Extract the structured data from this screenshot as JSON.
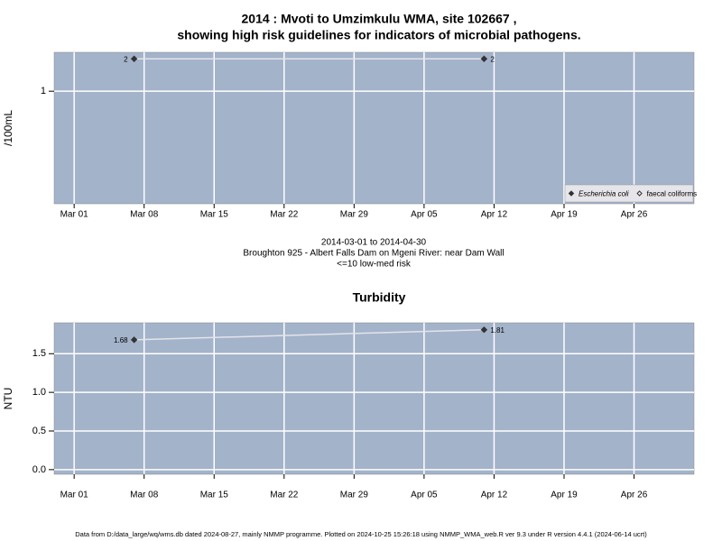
{
  "chart_data": [
    {
      "type": "line",
      "title": [
        "2014 : Mvoti to Umzimkulu WMA, site 102667 ,",
        "showing high risk guidelines for indicators of microbial pathogens."
      ],
      "subtitle": [
        "2014-03-01 to 2014-04-30",
        "Broughton 925 - Albert Falls Dam on Mgeni River: near Dam Wall",
        "<=10 low-med risk"
      ],
      "ylabel": "/100mL",
      "log_scale": true,
      "grid": true,
      "legend": "bottom-right",
      "xlim": [
        "2014-02-27",
        "2014-05-02"
      ],
      "xticks": [
        {
          "value": "2014-03-01",
          "label": "Mar 01"
        },
        {
          "value": "2014-03-08",
          "label": "Mar 08"
        },
        {
          "value": "2014-03-15",
          "label": "Mar 15"
        },
        {
          "value": "2014-03-22",
          "label": "Mar 22"
        },
        {
          "value": "2014-03-29",
          "label": "Mar 29"
        },
        {
          "value": "2014-04-05",
          "label": "Apr 05"
        },
        {
          "value": "2014-04-12",
          "label": "Apr 12"
        },
        {
          "value": "2014-04-19",
          "label": "Apr 19"
        },
        {
          "value": "2014-04-26",
          "label": "Apr 26"
        }
      ],
      "ylim": [
        0.09,
        2.3
      ],
      "yticks": [
        1
      ],
      "x": [
        "2014-03-07",
        "2014-04-11"
      ],
      "series": [
        {
          "name": "Escherichia coli",
          "color": "#333333",
          "marker": "filled",
          "values": [
            2,
            2
          ]
        },
        {
          "name": "faecal coliforms",
          "color": "#333333",
          "marker": "open",
          "values": [
            null,
            null
          ]
        }
      ]
    },
    {
      "type": "line",
      "title": [
        "Turbidity"
      ],
      "ylabel": "NTU",
      "log_scale": false,
      "grid": true,
      "xlim": [
        "2014-02-27",
        "2014-05-02"
      ],
      "xticks": [
        {
          "value": "2014-03-01",
          "label": "Mar 01"
        },
        {
          "value": "2014-03-08",
          "label": "Mar 08"
        },
        {
          "value": "2014-03-15",
          "label": "Mar 15"
        },
        {
          "value": "2014-03-22",
          "label": "Mar 22"
        },
        {
          "value": "2014-03-29",
          "label": "Mar 29"
        },
        {
          "value": "2014-04-05",
          "label": "Apr 05"
        },
        {
          "value": "2014-04-12",
          "label": "Apr 12"
        },
        {
          "value": "2014-04-19",
          "label": "Apr 19"
        },
        {
          "value": "2014-04-26",
          "label": "Apr 26"
        }
      ],
      "ylim": [
        -0.06,
        1.9
      ],
      "yticks": [
        {
          "value": 0,
          "label": "0.0"
        },
        {
          "value": 0.5,
          "label": "0.5"
        },
        {
          "value": 1,
          "label": "1.0"
        },
        1.5
      ],
      "x": [
        "2014-03-07",
        "2014-04-11"
      ],
      "series": [
        {
          "name": "Turbidity",
          "color": "#333333",
          "marker": "filled",
          "values": [
            1.68,
            1.81
          ]
        }
      ]
    }
  ],
  "footer": "Data from D:/data_large/wq/wms.db dated 2024-08-27, mainly NMMP programme. Plotted on 2024-10-25 15:26:18 using NMMP_WMA_web.R ver 9.3 under R version 4.4.1 (2024-06-14 ucrt)"
}
